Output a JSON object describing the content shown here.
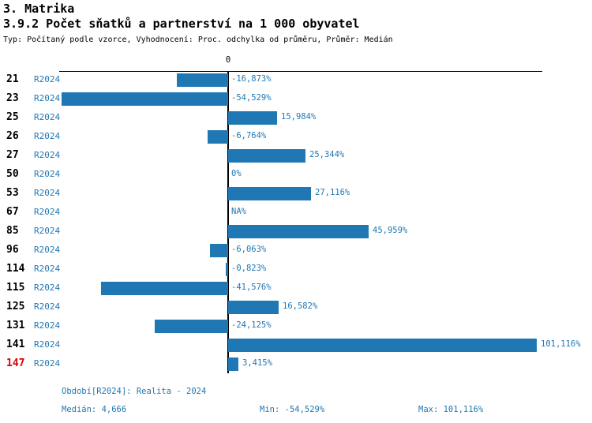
{
  "page": {
    "section_title": "3. Matrika",
    "chart_title": "3.9.2 Počet sňatků a partnerství na 1 000 obyvatel",
    "chart_subtitle": "Typ: Počítaný podle vzorce, Vyhodnocení: Proc. odchylka od průměru, Průměr: Medián"
  },
  "chart_data": {
    "type": "bar",
    "orientation": "horizontal",
    "title": "3.9.2 Počet sňatků a partnerství na 1 000 obyvatel",
    "zero_tick_label": "0",
    "categories": [
      "21",
      "23",
      "25",
      "26",
      "27",
      "50",
      "53",
      "67",
      "85",
      "96",
      "114",
      "115",
      "125",
      "131",
      "141",
      "147"
    ],
    "series": [
      {
        "name": "R2024",
        "values": [
          -16.873,
          -54.529,
          15.984,
          -6.764,
          25.344,
          0,
          27.116,
          null,
          45.959,
          -6.063,
          -0.823,
          -41.576,
          16.582,
          -24.125,
          101.116,
          3.415
        ],
        "value_labels": [
          "-16,873%",
          "-54,529%",
          "15,984%",
          "-6,764%",
          "25,344%",
          "0%",
          "27,116%",
          "NA%",
          "45,959%",
          "-6,063%",
          "-0,823%",
          "-41,576%",
          "16,582%",
          "-24,125%",
          "101,116%",
          "3,415%"
        ]
      }
    ],
    "highlighted_category": "147",
    "xlim": [
      -55.3,
      102.9
    ],
    "grid": false,
    "legend": false,
    "bar_color": "#1f77b4",
    "highlight_color": "#dd0000"
  },
  "footer": {
    "period_note": "Období[R2024]: Realita - 2024",
    "median": "Medián: 4,666",
    "min": "Min: -54,529%",
    "max": "Max: 101,116%"
  }
}
